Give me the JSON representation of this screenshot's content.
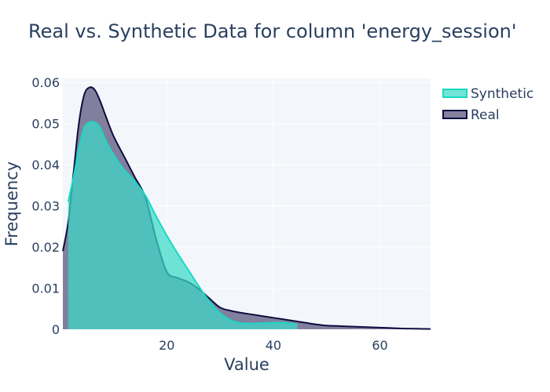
{
  "chart_data": {
    "type": "area",
    "title": "Real vs. Synthetic Data for column 'energy_session'",
    "xlabel": "Value",
    "ylabel": "Frequency",
    "xlim": [
      0.5,
      69.5
    ],
    "ylim": [
      0,
      0.061
    ],
    "x_ticks": [
      20,
      40,
      60
    ],
    "y_ticks": [
      0,
      0.01,
      0.02,
      0.03,
      0.04,
      0.05,
      0.06
    ],
    "y_tick_labels": [
      "0",
      "0.01",
      "0.02",
      "0.03",
      "0.04",
      "0.05",
      "0.06"
    ],
    "grid": true,
    "legend_position": "top-right",
    "series": [
      {
        "name": "Real",
        "color": "#0d0d3f",
        "fill": "#56507a",
        "points": [
          [
            0.5,
            0.019
          ],
          [
            1.5,
            0.026
          ],
          [
            2.5,
            0.038
          ],
          [
            3.5,
            0.05
          ],
          [
            4.5,
            0.057
          ],
          [
            5.5,
            0.0588
          ],
          [
            6.5,
            0.0582
          ],
          [
            7.5,
            0.0555
          ],
          [
            8.5,
            0.052
          ],
          [
            10,
            0.047
          ],
          [
            12,
            0.042
          ],
          [
            14,
            0.037
          ],
          [
            16,
            0.032
          ],
          [
            18,
            0.022
          ],
          [
            20,
            0.014
          ],
          [
            22,
            0.0125
          ],
          [
            24,
            0.0115
          ],
          [
            26,
            0.0098
          ],
          [
            28,
            0.0075
          ],
          [
            30,
            0.0053
          ],
          [
            32,
            0.0045
          ],
          [
            34,
            0.004
          ],
          [
            36,
            0.0036
          ],
          [
            38,
            0.0032
          ],
          [
            40,
            0.0028
          ],
          [
            42,
            0.0024
          ],
          [
            44,
            0.002
          ],
          [
            46,
            0.0016
          ],
          [
            48,
            0.0012
          ],
          [
            50,
            0.0009
          ],
          [
            52,
            0.0008
          ],
          [
            54,
            0.0007
          ],
          [
            56,
            0.0006
          ],
          [
            58,
            0.0005
          ],
          [
            60,
            0.0004
          ],
          [
            62,
            0.0003
          ],
          [
            64,
            0.0002
          ],
          [
            66,
            0.00015
          ],
          [
            68,
            0.0001
          ],
          [
            69.5,
            8e-05
          ]
        ]
      },
      {
        "name": "Synthetic",
        "color": "#18d9c4",
        "fill": "#3cd9c8",
        "points": [
          [
            1.5,
            0.031
          ],
          [
            2.5,
            0.037
          ],
          [
            3.5,
            0.044
          ],
          [
            4.5,
            0.049
          ],
          [
            5.5,
            0.0503
          ],
          [
            6.5,
            0.0503
          ],
          [
            7.5,
            0.049
          ],
          [
            8.5,
            0.046
          ],
          [
            10,
            0.0425
          ],
          [
            12,
            0.0388
          ],
          [
            14,
            0.036
          ],
          [
            16,
            0.0325
          ],
          [
            18,
            0.0275
          ],
          [
            20,
            0.0228
          ],
          [
            22,
            0.0185
          ],
          [
            24,
            0.0145
          ],
          [
            26,
            0.0105
          ],
          [
            28,
            0.0068
          ],
          [
            30,
            0.004
          ],
          [
            32,
            0.0022
          ],
          [
            34,
            0.0015
          ],
          [
            36,
            0.0014
          ],
          [
            38,
            0.0015
          ],
          [
            40,
            0.0016
          ],
          [
            42,
            0.0016
          ],
          [
            44.5,
            0.0012
          ]
        ]
      }
    ]
  }
}
